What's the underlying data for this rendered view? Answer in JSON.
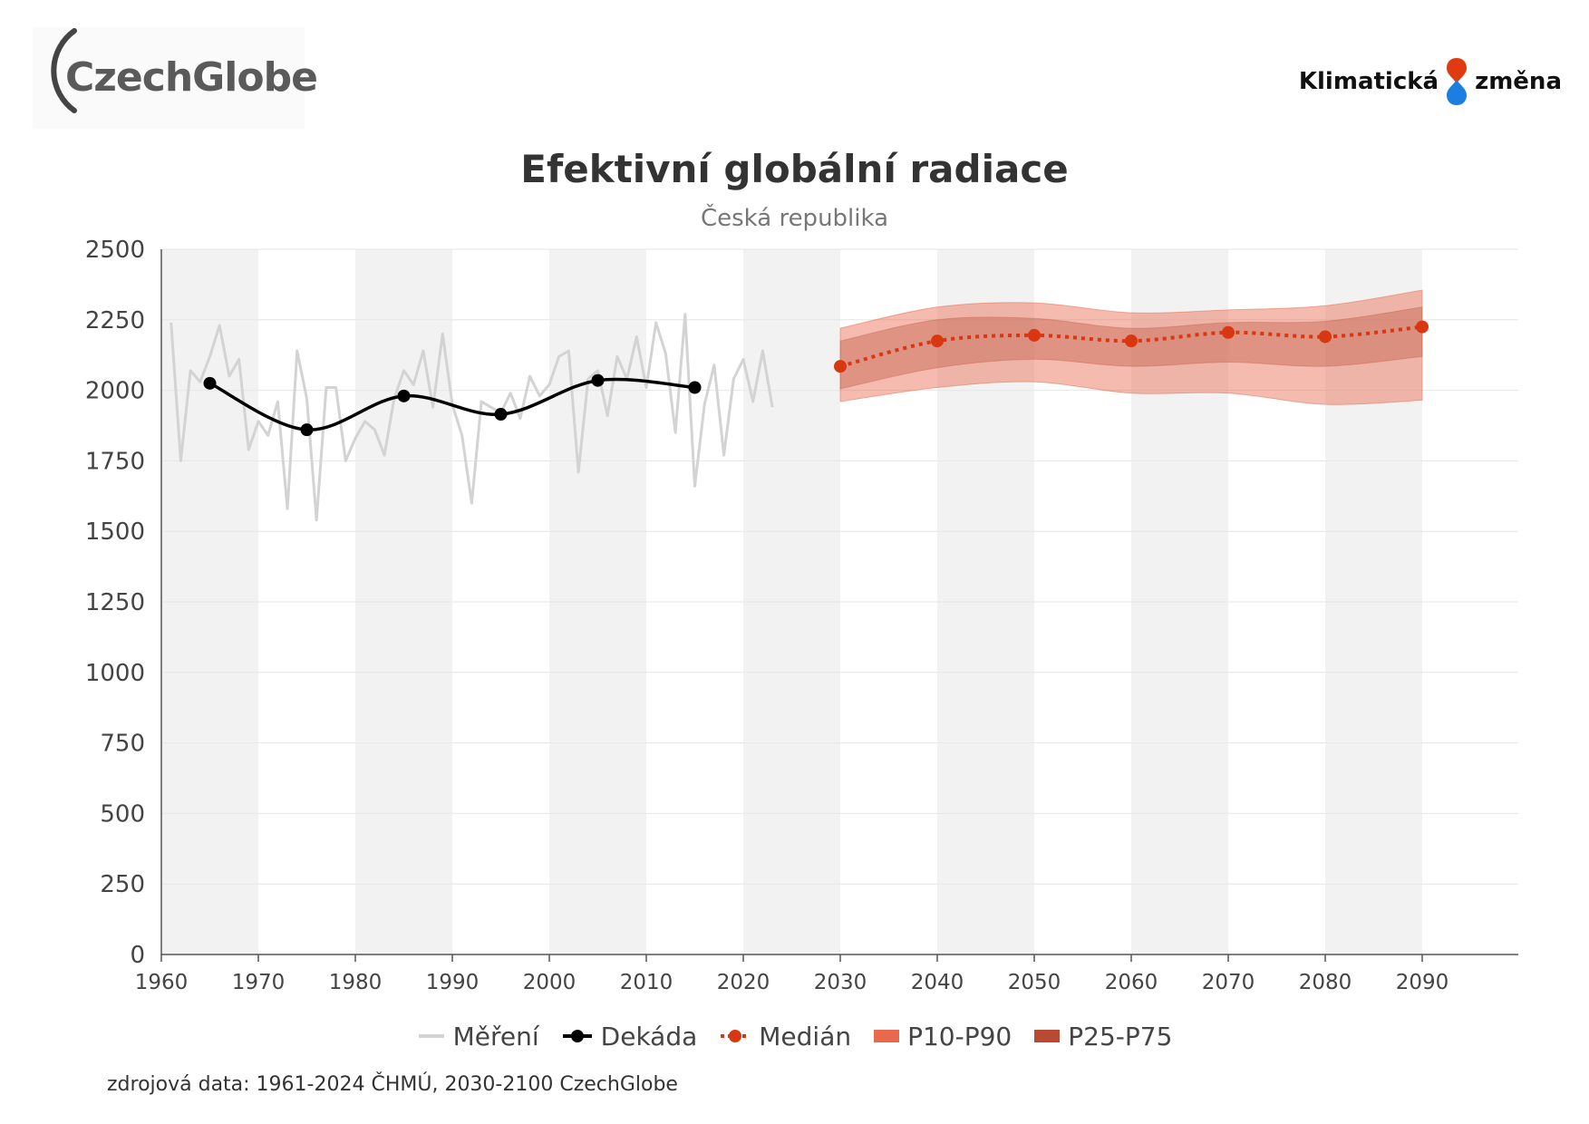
{
  "header": {
    "logo_left_text": "CzechGlobe",
    "logo_right_word1": "Klimatická",
    "logo_right_word2": "změna",
    "title": "Efektivní globální radiace",
    "subtitle": "Česká republika"
  },
  "colors": {
    "measured": "#d3d3d3",
    "decade": "#000000",
    "median": "#d93612",
    "p10_p90": "#e8694c",
    "p25_p75": "#b84a33",
    "stripe": "#f2f2f2",
    "grid": "#e6e6e6",
    "drop_red": "#e03a12",
    "drop_blue": "#1a7fe0"
  },
  "chart_data": {
    "type": "line",
    "title": "Efektivní globální radiace",
    "subtitle": "Česká republika",
    "xlim": [
      1960,
      2100
    ],
    "ylim": [
      0,
      2500
    ],
    "x_ticks": [
      1960,
      1970,
      1980,
      1990,
      2000,
      2010,
      2020,
      2030,
      2040,
      2050,
      2060,
      2070,
      2080,
      2090
    ],
    "y_ticks": [
      0,
      250,
      500,
      750,
      1000,
      1250,
      1500,
      1750,
      2000,
      2250,
      2500
    ],
    "grid": true,
    "stripes": "alternating decades",
    "series": [
      {
        "name": "Měření",
        "kind": "line",
        "x": [
          1961,
          1962,
          1963,
          1964,
          1965,
          1966,
          1967,
          1968,
          1969,
          1970,
          1971,
          1972,
          1973,
          1974,
          1975,
          1976,
          1977,
          1978,
          1979,
          1980,
          1981,
          1982,
          1983,
          1984,
          1985,
          1986,
          1987,
          1988,
          1989,
          1990,
          1991,
          1992,
          1993,
          1994,
          1995,
          1996,
          1997,
          1998,
          1999,
          2000,
          2001,
          2002,
          2003,
          2004,
          2005,
          2006,
          2007,
          2008,
          2009,
          2010,
          2011,
          2012,
          2013,
          2014,
          2015,
          2016,
          2017,
          2018,
          2019,
          2020,
          2021,
          2022,
          2023
        ],
        "values": [
          2240,
          1750,
          2070,
          2030,
          2120,
          2230,
          2050,
          2110,
          1790,
          1890,
          1840,
          1960,
          1580,
          2140,
          1970,
          1540,
          2010,
          2010,
          1750,
          1830,
          1890,
          1860,
          1770,
          1970,
          2070,
          2020,
          2140,
          1940,
          2200,
          1950,
          1840,
          1600,
          1960,
          1940,
          1920,
          1990,
          1900,
          2050,
          1980,
          2020,
          2120,
          2140,
          1710,
          2040,
          2070,
          1910,
          2120,
          2040,
          2190,
          2010,
          2240,
          2130,
          1850,
          2270,
          1660,
          1950,
          2090,
          1770,
          2040,
          2110,
          1960,
          2140,
          1940
        ]
      },
      {
        "name": "Dekáda",
        "kind": "smooth-line-with-markers",
        "x": [
          1965,
          1975,
          1985,
          1995,
          2005,
          2015
        ],
        "values": [
          2025,
          1860,
          1980,
          1915,
          2035,
          2010
        ]
      },
      {
        "name": "Medián",
        "kind": "dotted-line-with-markers",
        "x": [
          2030,
          2040,
          2050,
          2060,
          2070,
          2080,
          2090
        ],
        "values": [
          2085,
          2175,
          2195,
          2175,
          2205,
          2190,
          2225
        ]
      },
      {
        "name": "P10-P90",
        "kind": "band",
        "x": [
          2030,
          2040,
          2050,
          2060,
          2070,
          2080,
          2090
        ],
        "low": [
          1960,
          2010,
          2030,
          1990,
          1990,
          1950,
          1965
        ],
        "high": [
          2220,
          2295,
          2310,
          2275,
          2285,
          2300,
          2355
        ]
      },
      {
        "name": "P25-P75",
        "kind": "band",
        "x": [
          2030,
          2040,
          2050,
          2060,
          2070,
          2080,
          2090
        ],
        "low": [
          2005,
          2080,
          2110,
          2085,
          2100,
          2085,
          2120
        ],
        "high": [
          2175,
          2250,
          2255,
          2220,
          2240,
          2245,
          2295
        ]
      }
    ],
    "legend": {
      "position": "bottom-center",
      "items": [
        "Měření",
        "Dekáda",
        "Medián",
        "P10-P90",
        "P25-P75"
      ]
    }
  },
  "footer": {
    "source": "zdrojová data: 1961-2024 ČHMÚ, 2030-2100 CzechGlobe"
  }
}
